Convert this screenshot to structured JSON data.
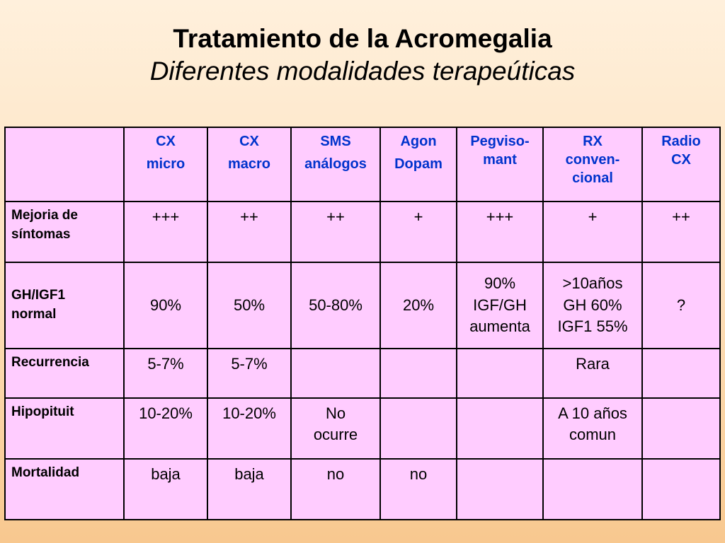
{
  "title": "Tratamiento de la Acromegalia",
  "subtitle": "Diferentes modalidades terapeúticas",
  "table": {
    "headers": [
      [
        "CX",
        "micro"
      ],
      [
        "CX",
        "macro"
      ],
      [
        "SMS",
        "análogos"
      ],
      [
        "Agon",
        "Dopam"
      ],
      [
        "Pegviso-",
        "mant"
      ],
      [
        "RX",
        "conven-",
        "cional"
      ],
      [
        "Radio",
        "CX"
      ]
    ],
    "rows": [
      {
        "label": [
          "Mejoria de",
          "síntomas"
        ],
        "cells": [
          [
            "+++"
          ],
          [
            "++"
          ],
          [
            "++"
          ],
          [
            "+"
          ],
          [
            "+++"
          ],
          [
            "+"
          ],
          [
            "++"
          ]
        ]
      },
      {
        "label": [
          "GH/IGF1",
          "normal"
        ],
        "cells": [
          [
            "90%"
          ],
          [
            "50%"
          ],
          [
            "50-80%"
          ],
          [
            "20%"
          ],
          [
            "90%",
            "IGF/GH",
            "aumenta"
          ],
          [
            ">10años",
            "GH 60%",
            "IGF1 55%"
          ],
          [
            "?"
          ]
        ]
      },
      {
        "label": [
          "Recurrencia"
        ],
        "cells": [
          [
            "5-7%"
          ],
          [
            "5-7%"
          ],
          [],
          [],
          [],
          [
            "Rara"
          ],
          []
        ]
      },
      {
        "label": [
          "Hipopituit"
        ],
        "cells": [
          [
            "10-20%"
          ],
          [
            "10-20%"
          ],
          [
            "No",
            "ocurre"
          ],
          [],
          [],
          [
            "A 10 años",
            "comun"
          ],
          []
        ]
      },
      {
        "label": [
          "Mortalidad"
        ],
        "cells": [
          [
            "baja"
          ],
          [
            "baja"
          ],
          [
            "no"
          ],
          [
            "no"
          ],
          [],
          [],
          []
        ]
      }
    ]
  }
}
